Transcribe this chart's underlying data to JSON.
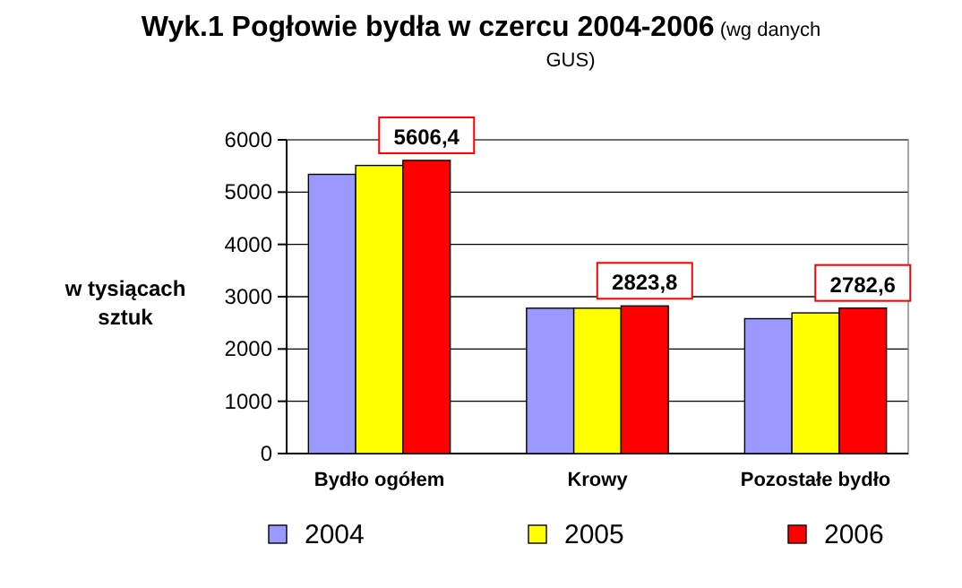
{
  "chart_data": {
    "type": "bar",
    "title": "Wyk.1 Pogłowie bydła w czercu 2004-2006",
    "subtitle": "(wg danych GUS)",
    "ylabel": "w tysiącach sztuk",
    "categories": [
      "Bydło ogółem",
      "Krowy",
      "Pozostałe bydło"
    ],
    "series": [
      {
        "name": "2004",
        "color": "#9999ff",
        "values": [
          5340,
          2780,
          2580
        ]
      },
      {
        "name": "2005",
        "color": "#ffff00",
        "values": [
          5510,
          2780,
          2690
        ]
      },
      {
        "name": "2006",
        "color": "#ff0000",
        "values": [
          5606.4,
          2823.8,
          2782.6
        ],
        "value_labels": [
          "5606,4",
          "2823,8",
          "2782,6"
        ]
      }
    ],
    "ylim": [
      0,
      6000
    ],
    "yticks": [
      0,
      1000,
      2000,
      3000,
      4000,
      5000,
      6000
    ],
    "grid": "y",
    "legend": "bottom"
  }
}
